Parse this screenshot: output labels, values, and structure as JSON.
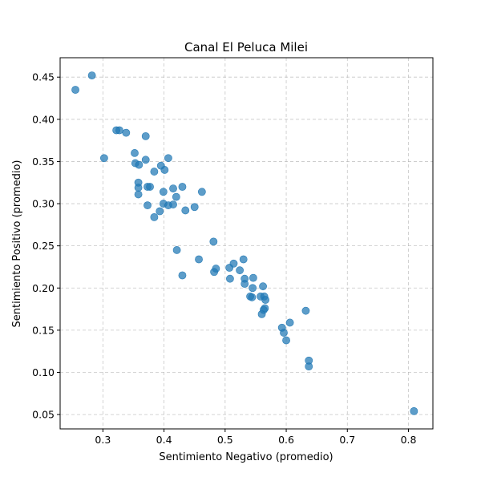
{
  "chart_data": {
    "type": "scatter",
    "title": "Canal El Peluca Milei",
    "xlabel": "Sentimiento Negativo (promedio)",
    "ylabel": "Sentimiento Positivo (promedio)",
    "xlim": [
      0.23,
      0.84
    ],
    "ylim": [
      0.033,
      0.473
    ],
    "xticks": [
      0.3,
      0.4,
      0.5,
      0.6,
      0.7,
      0.8
    ],
    "xtick_labels": [
      "0.3",
      "0.4",
      "0.5",
      "0.6",
      "0.7",
      "0.8"
    ],
    "yticks": [
      0.05,
      0.1,
      0.15,
      0.2,
      0.25,
      0.3,
      0.35,
      0.4,
      0.45
    ],
    "ytick_labels": [
      "0.05",
      "0.10",
      "0.15",
      "0.20",
      "0.25",
      "0.30",
      "0.35",
      "0.40",
      "0.45"
    ],
    "grid": true,
    "marker_color": "#1f77b4",
    "points": [
      [
        0.255,
        0.435
      ],
      [
        0.282,
        0.452
      ],
      [
        0.302,
        0.354
      ],
      [
        0.322,
        0.387
      ],
      [
        0.327,
        0.387
      ],
      [
        0.338,
        0.384
      ],
      [
        0.352,
        0.36
      ],
      [
        0.353,
        0.348
      ],
      [
        0.358,
        0.325
      ],
      [
        0.358,
        0.319
      ],
      [
        0.359,
        0.346
      ],
      [
        0.358,
        0.311
      ],
      [
        0.37,
        0.38
      ],
      [
        0.37,
        0.352
      ],
      [
        0.373,
        0.32
      ],
      [
        0.373,
        0.298
      ],
      [
        0.377,
        0.32
      ],
      [
        0.384,
        0.338
      ],
      [
        0.384,
        0.284
      ],
      [
        0.393,
        0.291
      ],
      [
        0.395,
        0.345
      ],
      [
        0.399,
        0.314
      ],
      [
        0.399,
        0.3
      ],
      [
        0.401,
        0.34
      ],
      [
        0.407,
        0.354
      ],
      [
        0.407,
        0.298
      ],
      [
        0.415,
        0.318
      ],
      [
        0.415,
        0.299
      ],
      [
        0.42,
        0.308
      ],
      [
        0.421,
        0.245
      ],
      [
        0.43,
        0.32
      ],
      [
        0.43,
        0.215
      ],
      [
        0.435,
        0.292
      ],
      [
        0.45,
        0.296
      ],
      [
        0.457,
        0.234
      ],
      [
        0.462,
        0.314
      ],
      [
        0.481,
        0.255
      ],
      [
        0.482,
        0.219
      ],
      [
        0.485,
        0.223
      ],
      [
        0.507,
        0.224
      ],
      [
        0.508,
        0.211
      ],
      [
        0.514,
        0.229
      ],
      [
        0.524,
        0.221
      ],
      [
        0.53,
        0.234
      ],
      [
        0.532,
        0.211
      ],
      [
        0.532,
        0.205
      ],
      [
        0.541,
        0.19
      ],
      [
        0.544,
        0.189
      ],
      [
        0.545,
        0.2
      ],
      [
        0.546,
        0.212
      ],
      [
        0.558,
        0.19
      ],
      [
        0.56,
        0.169
      ],
      [
        0.562,
        0.202
      ],
      [
        0.563,
        0.174
      ],
      [
        0.564,
        0.19
      ],
      [
        0.565,
        0.176
      ],
      [
        0.566,
        0.186
      ],
      [
        0.593,
        0.153
      ],
      [
        0.596,
        0.147
      ],
      [
        0.6,
        0.138
      ],
      [
        0.606,
        0.159
      ],
      [
        0.632,
        0.173
      ],
      [
        0.637,
        0.114
      ],
      [
        0.637,
        0.107
      ],
      [
        0.809,
        0.054
      ]
    ]
  }
}
